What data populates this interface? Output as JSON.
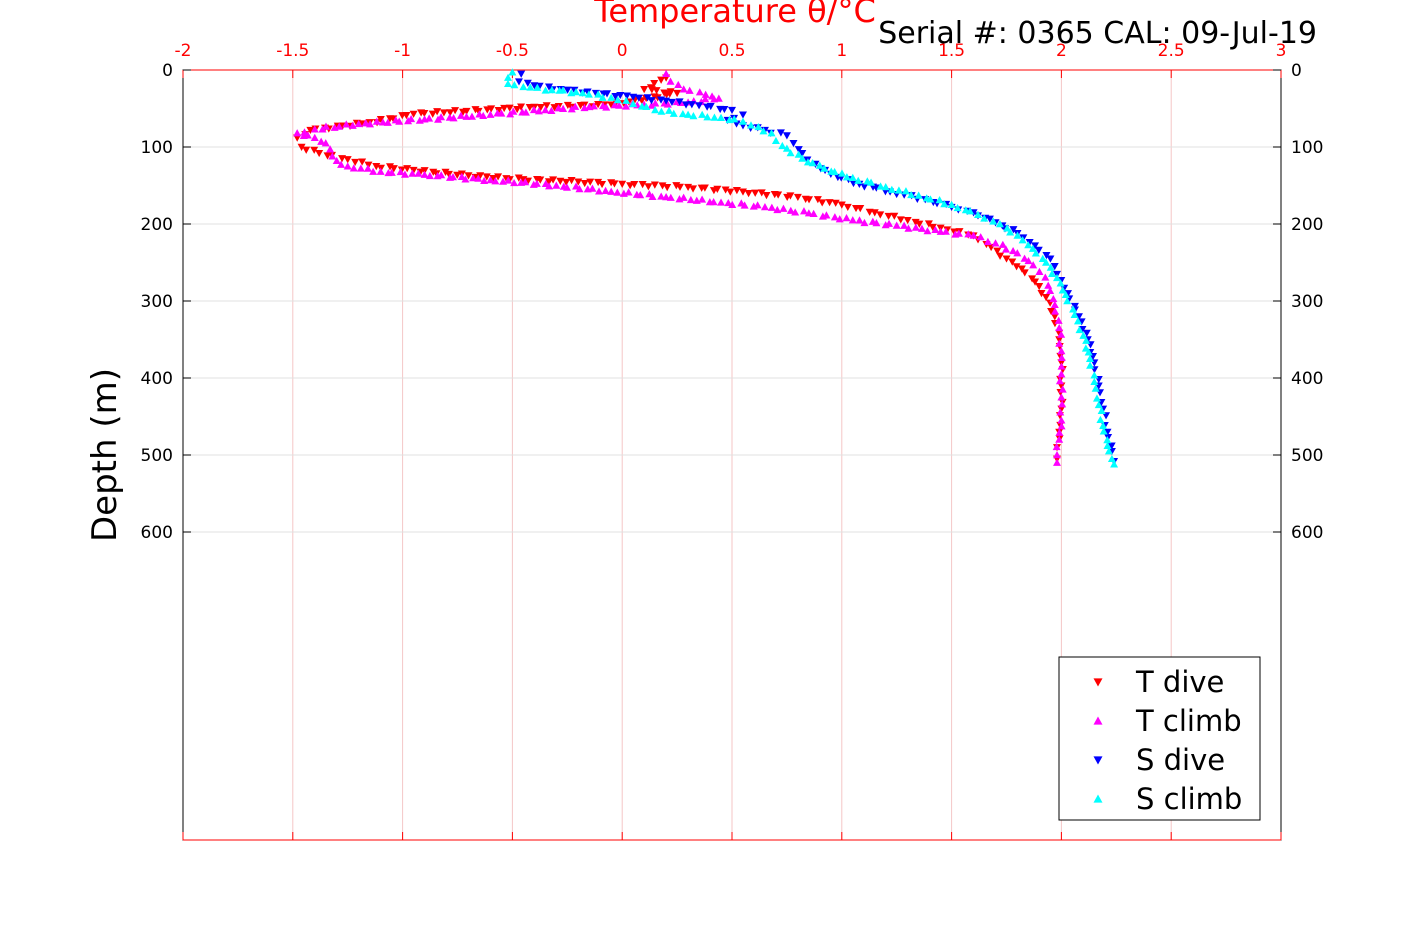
{
  "header": {
    "serial_line": "Serial #: 0365  CAL: 09-Jul-19"
  },
  "chart_data": {
    "type": "scatter",
    "title": "Temperature θ/°C",
    "xlabel": "Temperature θ/°C",
    "ylabel": "Depth (m)",
    "xlim": [
      -2,
      3
    ],
    "ylim": [
      1000,
      0
    ],
    "x_axis_position": "top",
    "x_ticks": [
      -2,
      -1.5,
      -1,
      -0.5,
      0,
      0.5,
      1,
      1.5,
      2,
      2.5,
      3
    ],
    "x_tick_labels": [
      "-2",
      "-1.5",
      "-1",
      "-0.5",
      "0",
      "0.5",
      "1",
      "1.5",
      "2",
      "2.5",
      "3"
    ],
    "y_ticks": [
      0,
      100,
      200,
      300,
      400,
      500,
      600
    ],
    "y_tick_labels": [
      "0",
      "100",
      "200",
      "300",
      "400",
      "500",
      "600"
    ],
    "grid": true,
    "legend_position": "bottom-right",
    "colors": {
      "x_axis": "#ff0000",
      "grid_x": "#f4c6c6",
      "grid_y": "#e0e0e0"
    },
    "series": [
      {
        "name": "T dive",
        "marker": "triangle-down",
        "color": "#ff0000",
        "points": [
          [
            0.2,
            10
          ],
          [
            0.1,
            25
          ],
          [
            0.25,
            30
          ],
          [
            -0.05,
            45
          ],
          [
            -0.4,
            48
          ],
          [
            -0.95,
            57
          ],
          [
            -1.15,
            68
          ],
          [
            -1.42,
            78
          ],
          [
            -1.48,
            88
          ],
          [
            -1.46,
            100
          ],
          [
            -1.38,
            108
          ],
          [
            -1.25,
            116
          ],
          [
            -1.12,
            125
          ],
          [
            -0.95,
            130
          ],
          [
            -0.7,
            137
          ],
          [
            -0.45,
            142
          ],
          [
            -0.2,
            145
          ],
          [
            0.0,
            148
          ],
          [
            0.3,
            152
          ],
          [
            0.55,
            158
          ],
          [
            0.8,
            165
          ],
          [
            1.0,
            175
          ],
          [
            1.15,
            185
          ],
          [
            1.3,
            195
          ],
          [
            1.45,
            205
          ],
          [
            1.6,
            215
          ],
          [
            1.68,
            230
          ],
          [
            1.75,
            245
          ],
          [
            1.82,
            258
          ],
          [
            1.88,
            275
          ],
          [
            1.93,
            295
          ],
          [
            1.97,
            320
          ],
          [
            1.99,
            350
          ],
          [
            2.0,
            380
          ],
          [
            2.0,
            410
          ],
          [
            2.0,
            440
          ],
          [
            1.99,
            470
          ],
          [
            1.98,
            490
          ],
          [
            1.98,
            505
          ]
        ]
      },
      {
        "name": "T climb",
        "marker": "triangle-up",
        "color": "#ff00ff",
        "points": [
          [
            0.2,
            5
          ],
          [
            0.22,
            15
          ],
          [
            0.28,
            25
          ],
          [
            0.38,
            32
          ],
          [
            0.44,
            37
          ],
          [
            0.3,
            42
          ],
          [
            0.1,
            45
          ],
          [
            -0.15,
            48
          ],
          [
            -0.35,
            52
          ],
          [
            -0.6,
            58
          ],
          [
            -0.9,
            64
          ],
          [
            -1.2,
            70
          ],
          [
            -1.4,
            77
          ],
          [
            -1.48,
            82
          ],
          [
            -1.4,
            88
          ],
          [
            -1.35,
            95
          ],
          [
            -1.33,
            103
          ],
          [
            -1.32,
            112
          ],
          [
            -1.3,
            118
          ],
          [
            -1.25,
            125
          ],
          [
            -1.1,
            132
          ],
          [
            -0.9,
            136
          ],
          [
            -0.6,
            143
          ],
          [
            -0.3,
            150
          ],
          [
            -0.05,
            158
          ],
          [
            0.2,
            165
          ],
          [
            0.45,
            172
          ],
          [
            0.65,
            178
          ],
          [
            0.85,
            186
          ],
          [
            1.05,
            195
          ],
          [
            1.25,
            202
          ],
          [
            1.45,
            210
          ],
          [
            1.6,
            215
          ],
          [
            1.7,
            225
          ],
          [
            1.78,
            235
          ],
          [
            1.85,
            248
          ],
          [
            1.9,
            262
          ],
          [
            1.94,
            280
          ],
          [
            1.97,
            305
          ],
          [
            1.99,
            335
          ],
          [
            2.0,
            365
          ],
          [
            2.0,
            395
          ],
          [
            2.0,
            425
          ],
          [
            2.0,
            455
          ],
          [
            1.99,
            480
          ],
          [
            1.98,
            500
          ],
          [
            1.98,
            510
          ]
        ]
      },
      {
        "name": "S dive",
        "marker": "triangle-down",
        "color": "#0000ff",
        "points": [
          [
            -0.46,
            5
          ],
          [
            -0.47,
            15
          ],
          [
            -0.4,
            20
          ],
          [
            -0.28,
            25
          ],
          [
            -0.12,
            30
          ],
          [
            0.05,
            35
          ],
          [
            0.2,
            40
          ],
          [
            0.35,
            46
          ],
          [
            0.5,
            52
          ],
          [
            0.55,
            58
          ],
          [
            0.48,
            65
          ],
          [
            0.55,
            72
          ],
          [
            0.65,
            78
          ],
          [
            0.75,
            85
          ],
          [
            0.78,
            95
          ],
          [
            0.82,
            108
          ],
          [
            0.88,
            122
          ],
          [
            0.95,
            135
          ],
          [
            1.08,
            148
          ],
          [
            1.22,
            158
          ],
          [
            1.38,
            168
          ],
          [
            1.5,
            178
          ],
          [
            1.6,
            185
          ],
          [
            1.7,
            198
          ],
          [
            1.8,
            212
          ],
          [
            1.88,
            228
          ],
          [
            1.95,
            245
          ],
          [
            1.98,
            265
          ],
          [
            2.03,
            290
          ],
          [
            2.08,
            320
          ],
          [
            2.12,
            350
          ],
          [
            2.15,
            380
          ],
          [
            2.17,
            410
          ],
          [
            2.19,
            440
          ],
          [
            2.21,
            470
          ],
          [
            2.23,
            495
          ],
          [
            2.24,
            508
          ]
        ]
      },
      {
        "name": "S climb",
        "marker": "triangle-up",
        "color": "#00ffff",
        "points": [
          [
            -0.5,
            3
          ],
          [
            -0.52,
            10
          ],
          [
            -0.52,
            18
          ],
          [
            -0.45,
            22
          ],
          [
            -0.32,
            26
          ],
          [
            -0.18,
            30
          ],
          [
            -0.05,
            36
          ],
          [
            0.05,
            44
          ],
          [
            0.15,
            52
          ],
          [
            0.3,
            58
          ],
          [
            0.45,
            62
          ],
          [
            0.55,
            67
          ],
          [
            0.62,
            74
          ],
          [
            0.68,
            82
          ],
          [
            0.7,
            92
          ],
          [
            0.75,
            102
          ],
          [
            0.82,
            115
          ],
          [
            0.92,
            128
          ],
          [
            1.05,
            140
          ],
          [
            1.2,
            152
          ],
          [
            1.35,
            163
          ],
          [
            1.5,
            175
          ],
          [
            1.62,
            188
          ],
          [
            1.72,
            200
          ],
          [
            1.8,
            215
          ],
          [
            1.87,
            232
          ],
          [
            1.93,
            250
          ],
          [
            1.98,
            270
          ],
          [
            2.02,
            292
          ],
          [
            2.06,
            318
          ],
          [
            2.1,
            345
          ],
          [
            2.13,
            375
          ],
          [
            2.15,
            405
          ],
          [
            2.17,
            435
          ],
          [
            2.19,
            462
          ],
          [
            2.21,
            488
          ],
          [
            2.23,
            505
          ],
          [
            2.24,
            512
          ]
        ]
      }
    ]
  }
}
